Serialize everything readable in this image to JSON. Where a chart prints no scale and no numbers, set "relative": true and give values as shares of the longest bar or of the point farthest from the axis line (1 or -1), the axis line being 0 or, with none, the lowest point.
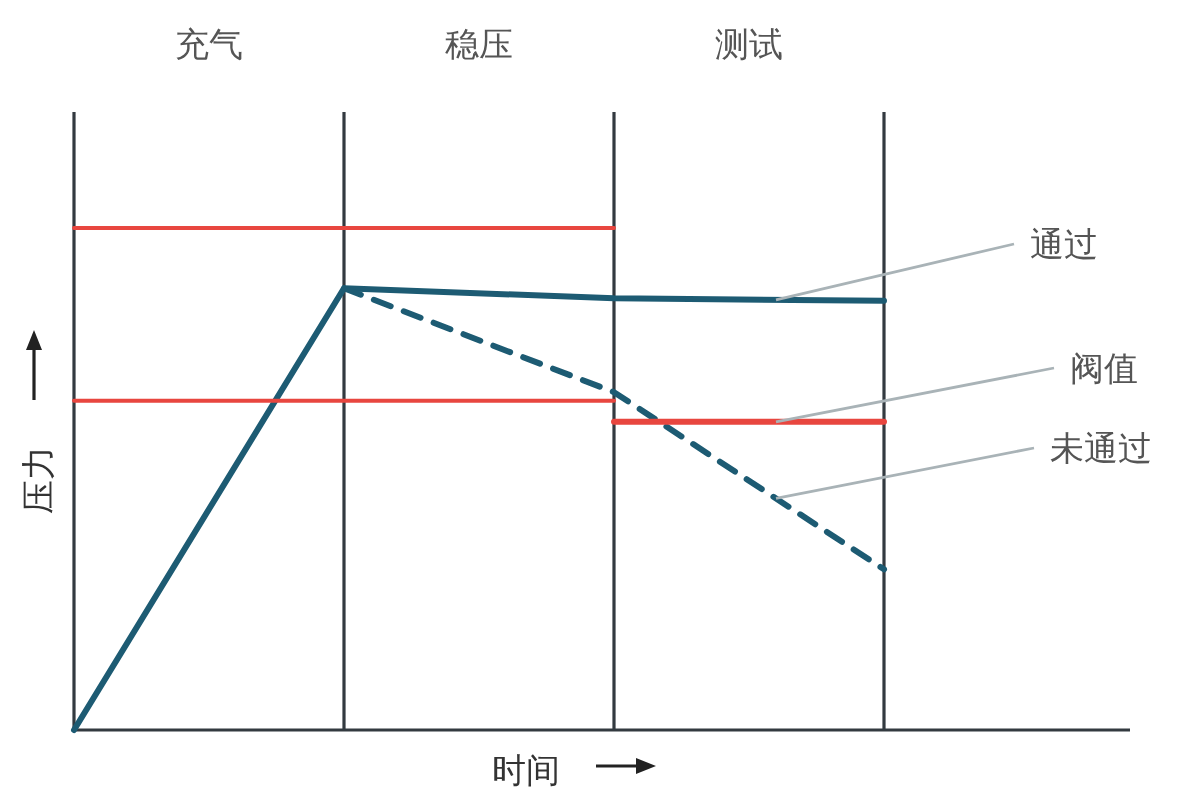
{
  "chart_data": {
    "type": "line",
    "relative": true,
    "xlabel": "时间",
    "ylabel": "压力",
    "grid": "x",
    "categories": [
      null,
      null,
      null,
      null
    ],
    "series": [
      {
        "name": "通过",
        "color": "#1d5b73",
        "values": [
          0,
          0.88,
          0.86,
          0.855
        ],
        "line_style": "solid"
      },
      {
        "name": "未通过",
        "color": "#1d5b73",
        "values": [
          null,
          0.88,
          0.673,
          0.32
        ],
        "line_style": "dashed"
      },
      {
        "color": "#e8463f",
        "values": [
          1,
          1,
          1,
          null
        ],
        "line_style": "solid"
      },
      {
        "color": "#e8463f",
        "values": [
          0.656,
          0.656,
          0.656,
          null
        ],
        "line_style": "solid"
      },
      {
        "name": "阀值",
        "color": "#e8463f",
        "values": [
          null,
          null,
          0.614,
          0.614
        ],
        "line_style": "solid"
      }
    ],
    "annotations": [
      "充气",
      "稳压",
      "测试"
    ]
  }
}
